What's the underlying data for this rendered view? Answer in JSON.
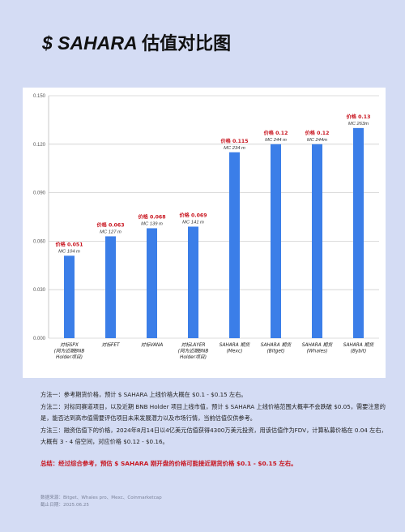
{
  "header": {
    "title_prefix": "$ SAHARA",
    "title_suffix": "估值对比图"
  },
  "chart_data": {
    "type": "bar",
    "ylim": [
      0,
      0.15
    ],
    "yticks": [
      "0.000",
      "0.030",
      "0.060",
      "0.090",
      "0.120",
      "0.150"
    ],
    "grid": true,
    "bar_color": "#3b7ee8",
    "price_label_color": "#c8141e",
    "bars": [
      {
        "price_label": "价格 0.051",
        "mc_label": "MC 104 m",
        "value": 0.051,
        "category": [
          "对标SPX",
          "(同为近期BNB",
          "Holder项目)"
        ]
      },
      {
        "price_label": "价格 0.063",
        "mc_label": "MC 127 m",
        "value": 0.063,
        "category": [
          "对标FET"
        ]
      },
      {
        "price_label": "价格 0.068",
        "mc_label": "MC 139 m",
        "value": 0.068,
        "category": [
          "对标VANA"
        ]
      },
      {
        "price_label": "价格 0.069",
        "mc_label": "MC 141 m",
        "value": 0.069,
        "category": [
          "对标LAYER",
          "(同为近期BNB",
          "Holder项目)"
        ]
      },
      {
        "price_label": "价格 0.115",
        "mc_label": "MC 234 m",
        "value": 0.115,
        "category": [
          "SAHARA 期货",
          "(Mexc)"
        ]
      },
      {
        "price_label": "价格 0.12",
        "mc_label": "MC 244 m",
        "value": 0.12,
        "category": [
          "SAHARA 期货",
          "(Bitget)"
        ]
      },
      {
        "price_label": "价格 0.12",
        "mc_label": "MC 244m",
        "value": 0.12,
        "category": [
          "SAHARA 期货",
          "(Whales)"
        ]
      },
      {
        "price_label": "价格 0.13",
        "mc_label": "MC 263m",
        "value": 0.13,
        "category": [
          "SAHARA 期货",
          "(Bybit)"
        ]
      }
    ]
  },
  "notes": [
    "方法一：参考期货价格，预计 $ SAHARA 上线价格大概在 $0.1 - $0.15 左右。",
    "方法二：对标同赛道项目，以及近期 BNB Holder 项目上线市值，预计 $ SAHARA 上线价格范围大概率不会跌破 $0.05，需要注意的是，能否达到高市值需要评估项目未来发展潜力以及市场行情，当前估值仅供参考。",
    "方法三：融资估值下的价格，2024年8月14日以4亿美元估值获得4300万美元投资，用该估值作为FDV，计算私募价格在 0.04 左右，大概有 3 - 4 倍空间，对应价格 $0.12 - $0.16。"
  ],
  "summary": "总结：经过综合参考，预估 $ SAHARA 刚开盘的价格可能接近期货价格 $0.1 - $0.15 左右。",
  "footer": {
    "source": "数据来源：Bitget、Whales pro、Mexc、Coinmarketcap",
    "date": "截止日期：2025.06.25"
  }
}
